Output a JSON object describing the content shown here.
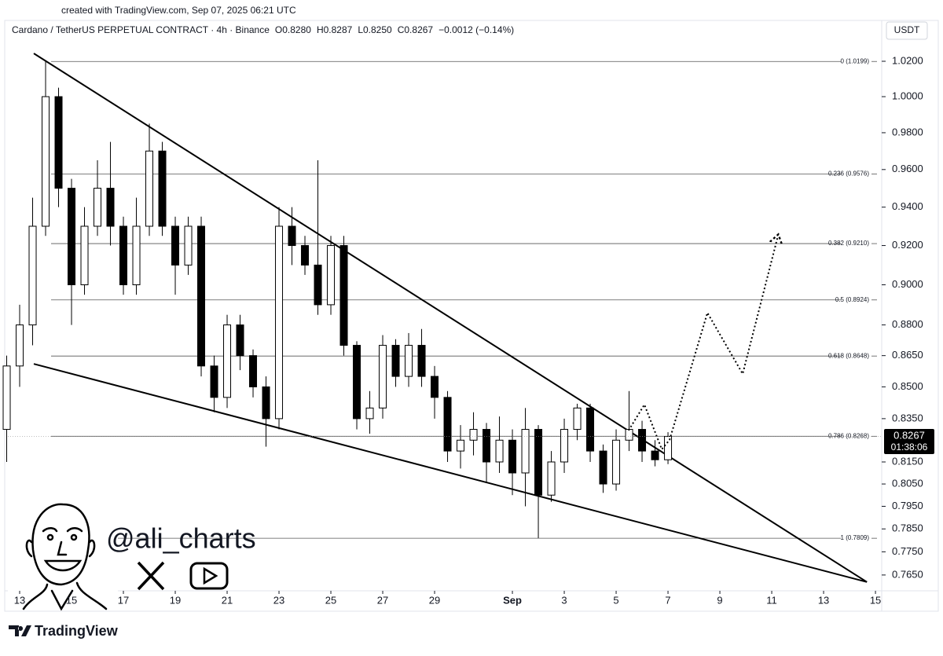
{
  "page": {
    "watermark": "created with TradingView.com, Sep 07, 2025 06:21 UTC",
    "brand": "TradingView",
    "handle": "@ali_charts",
    "currency": "USDT",
    "countdown": "01:38:06"
  },
  "chart_data": {
    "type": "candlestick",
    "legend": [
      "Cardano / TetherUS PERPETUAL CONTRACT · 4h · Binance",
      "O0.8280",
      "H0.8287",
      "L0.8250",
      "C0.8267",
      "−0.0012 (−0.14%)"
    ],
    "log_scale": true,
    "up_color": "#ffffff",
    "down_color": "#000000",
    "x": [
      12.5,
      13,
      13.5,
      14,
      14.5,
      15,
      15.5,
      16,
      16.5,
      17,
      17.5,
      18,
      18.5,
      19,
      19.5,
      20,
      20.5,
      21,
      21.5,
      22,
      22.5,
      23,
      23.5,
      24,
      24.5,
      25,
      25.5,
      26,
      26.5,
      27,
      27.5,
      28,
      28.5,
      29,
      29.5,
      30,
      30.5,
      31,
      31.5,
      32,
      32.5,
      33,
      33.5,
      34,
      34.5,
      35,
      35.5,
      36,
      36.5,
      37,
      37.5,
      38
    ],
    "open": [
      0.83,
      0.86,
      0.88,
      0.93,
      1.0,
      0.95,
      0.9,
      0.93,
      0.95,
      0.93,
      0.9,
      0.93,
      0.97,
      0.93,
      0.91,
      0.93,
      0.86,
      0.845,
      0.88,
      0.865,
      0.85,
      0.835,
      0.93,
      0.92,
      0.91,
      0.89,
      0.92,
      0.87,
      0.835,
      0.84,
      0.87,
      0.855,
      0.87,
      0.855,
      0.845,
      0.82,
      0.825,
      0.83,
      0.815,
      0.825,
      0.81,
      0.83,
      0.8,
      0.815,
      0.83,
      0.84,
      0.82,
      0.805,
      0.825,
      0.83,
      0.82,
      0.816
    ],
    "high": [
      0.865,
      0.89,
      0.945,
      1.02,
      1.005,
      0.955,
      0.94,
      0.965,
      0.975,
      0.935,
      0.945,
      0.985,
      0.975,
      0.935,
      0.935,
      0.935,
      0.865,
      0.885,
      0.885,
      0.868,
      0.855,
      0.94,
      0.94,
      0.925,
      0.965,
      0.925,
      0.925,
      0.872,
      0.848,
      0.875,
      0.873,
      0.876,
      0.878,
      0.86,
      0.848,
      0.832,
      0.838,
      0.833,
      0.836,
      0.83,
      0.84,
      0.832,
      0.82,
      0.835,
      0.842,
      0.842,
      0.823,
      0.83,
      0.848,
      0.834,
      0.825,
      0.8287
    ],
    "low": [
      0.815,
      0.85,
      0.87,
      0.925,
      0.94,
      0.88,
      0.895,
      0.925,
      0.92,
      0.895,
      0.895,
      0.925,
      0.925,
      0.895,
      0.905,
      0.855,
      0.838,
      0.84,
      0.858,
      0.845,
      0.822,
      0.83,
      0.91,
      0.905,
      0.885,
      0.885,
      0.865,
      0.83,
      0.828,
      0.835,
      0.85,
      0.85,
      0.85,
      0.835,
      0.815,
      0.812,
      0.818,
      0.806,
      0.81,
      0.8,
      0.795,
      0.781,
      0.797,
      0.81,
      0.825,
      0.815,
      0.801,
      0.802,
      0.82,
      0.815,
      0.813,
      0.814
    ],
    "close": [
      0.86,
      0.88,
      0.93,
      1.0,
      0.95,
      0.9,
      0.93,
      0.95,
      0.93,
      0.9,
      0.93,
      0.97,
      0.93,
      0.91,
      0.93,
      0.86,
      0.845,
      0.88,
      0.865,
      0.85,
      0.835,
      0.93,
      0.92,
      0.91,
      0.89,
      0.92,
      0.87,
      0.835,
      0.84,
      0.87,
      0.855,
      0.87,
      0.855,
      0.845,
      0.82,
      0.825,
      0.83,
      0.815,
      0.825,
      0.81,
      0.83,
      0.8,
      0.815,
      0.83,
      0.84,
      0.82,
      0.805,
      0.825,
      0.83,
      0.82,
      0.816,
      0.8267
    ],
    "last_price": {
      "value": 0.8267,
      "label": "0.8267"
    },
    "fib_levels": [
      {
        "value": 1.0199,
        "label": "0 (1.0199)"
      },
      {
        "value": 0.9576,
        "label": "0.236 (0.9576)"
      },
      {
        "value": 0.921,
        "label": "0.382 (0.9210)"
      },
      {
        "value": 0.8924,
        "label": "0.5 (0.8924)"
      },
      {
        "value": 0.8648,
        "label": "0.618 (0.8648)"
      },
      {
        "value": 0.8268,
        "label": "0.786 (0.8268)"
      },
      {
        "value": 0.7809,
        "label": "1 (0.7809)"
      }
    ],
    "trendlines": [
      {
        "x": [
          13.545,
          45.67
        ],
        "y": [
          1.0245,
          0.762
        ]
      },
      {
        "x": [
          13.545,
          45.67
        ],
        "y": [
          0.861,
          0.762
        ]
      }
    ],
    "projection": {
      "x": [
        36.48,
        37.09,
        37.76,
        38.06,
        39.52,
        40.88,
        42.24
      ],
      "y": [
        0.8295,
        0.8416,
        0.8208,
        0.8251,
        0.886,
        0.8562,
        0.925
      ]
    },
    "xlim": [
      12.545,
      46.18
    ],
    "xticks": [
      13,
      15,
      17,
      19,
      21,
      23,
      25,
      27,
      29,
      {
        "value": 32,
        "label": "Sep"
      },
      {
        "value": 34,
        "label": "3"
      },
      {
        "value": 36,
        "label": "5"
      },
      {
        "value": 38,
        "label": "7"
      },
      {
        "value": 40,
        "label": "9"
      },
      {
        "value": 42,
        "label": "11"
      },
      {
        "value": 44,
        "label": "13"
      },
      {
        "value": 46,
        "label": "15"
      }
    ],
    "ylim": [
      0.7556,
      1.0372
    ],
    "yticks": [
      {
        "value": 1.02,
        "label": "1.0200"
      },
      {
        "value": 1.0,
        "label": "1.0000"
      },
      {
        "value": 0.98,
        "label": "0.9800"
      },
      {
        "value": 0.96,
        "label": "0.9600"
      },
      {
        "value": 0.94,
        "label": "0.9400"
      },
      {
        "value": 0.92,
        "label": "0.9200"
      },
      {
        "value": 0.9,
        "label": "0.9000"
      },
      {
        "value": 0.88,
        "label": "0.8800"
      },
      {
        "value": 0.865,
        "label": "0.8650"
      },
      {
        "value": 0.85,
        "label": "0.8500"
      },
      {
        "value": 0.835,
        "label": "0.8350"
      },
      {
        "value": 0.815,
        "label": "0.8150"
      },
      {
        "value": 0.805,
        "label": "0.8050"
      },
      {
        "value": 0.795,
        "label": "0.7950"
      },
      {
        "value": 0.785,
        "label": "0.7850"
      },
      {
        "value": 0.775,
        "label": "0.7750"
      },
      {
        "value": 0.765,
        "label": "0.7650"
      }
    ]
  }
}
